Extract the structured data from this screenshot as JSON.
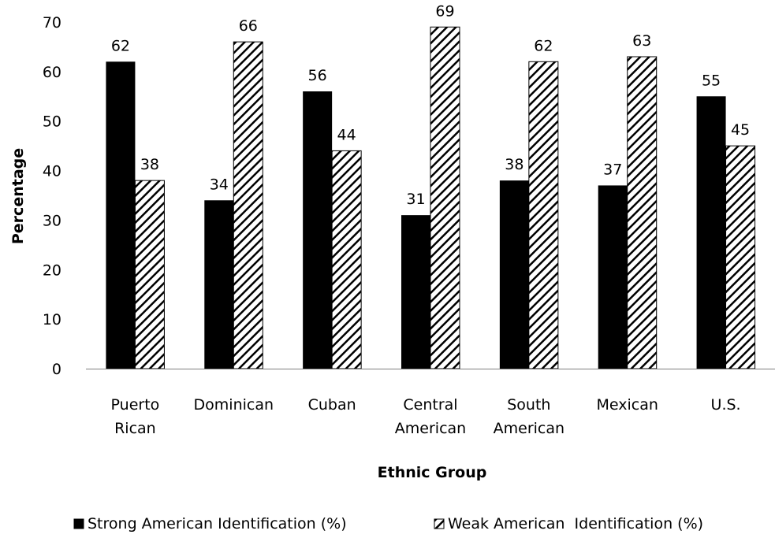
{
  "chart_data": {
    "type": "bar",
    "title": "",
    "xlabel": "Ethnic Group",
    "ylabel": "Percentage",
    "ylim": [
      0,
      70
    ],
    "yticks": [
      0,
      10,
      20,
      30,
      40,
      50,
      60,
      70
    ],
    "categories": [
      [
        "Puerto",
        "Rican"
      ],
      [
        "Dominican"
      ],
      [
        "Cuban"
      ],
      [
        "Central",
        "American"
      ],
      [
        "South",
        "American"
      ],
      [
        "Mexican"
      ],
      [
        "U.S."
      ]
    ],
    "series": [
      {
        "name": "Strong American Identification (%)",
        "values": [
          62,
          34,
          56,
          31,
          38,
          37,
          55
        ],
        "color": "#000000",
        "pattern": "solid"
      },
      {
        "name": "Weak American  Identification (%)",
        "values": [
          38,
          66,
          44,
          69,
          62,
          63,
          45
        ],
        "color": "#000000",
        "pattern": "diagonal-hatch"
      }
    ],
    "grid": false,
    "data_labels": true,
    "legend_position": "bottom"
  }
}
